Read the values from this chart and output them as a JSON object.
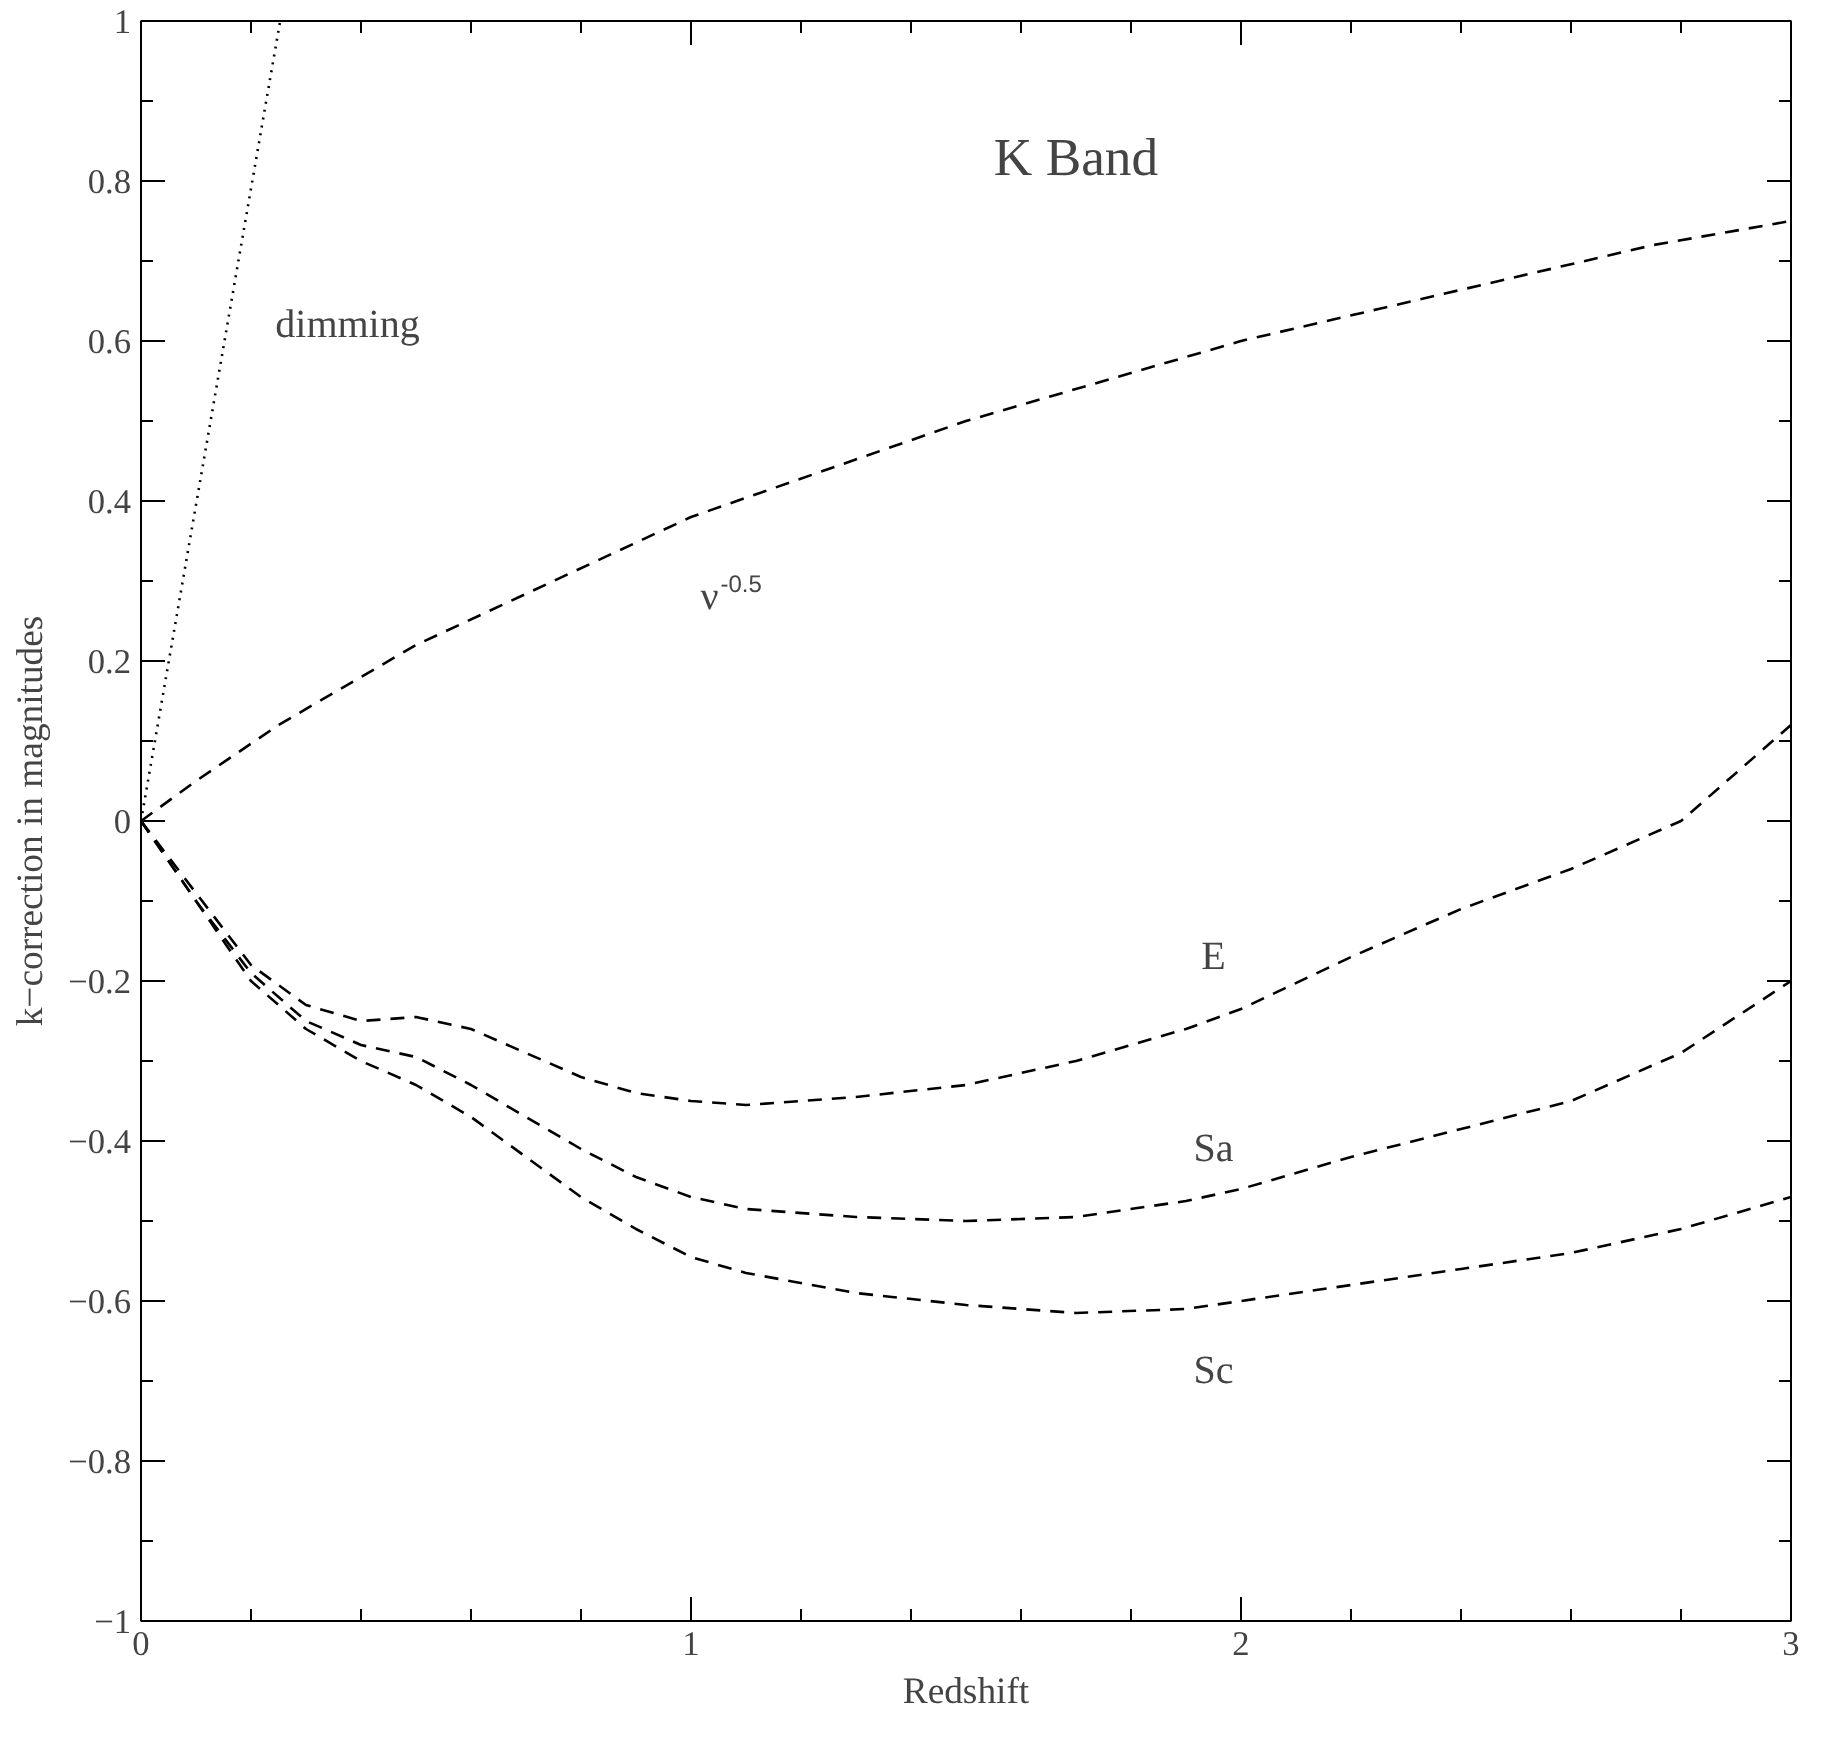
{
  "chart_data": {
    "type": "line",
    "title": "K Band",
    "xlabel": "Redshift",
    "ylabel": "k−correction in magnitudes",
    "xlim": [
      0,
      3
    ],
    "ylim": [
      -1,
      1
    ],
    "xticks": [
      0,
      1,
      2,
      3
    ],
    "yticks": [
      {
        "value": -1,
        "label": "−1"
      },
      {
        "value": -0.8,
        "label": "−0.8"
      },
      {
        "value": -0.6,
        "label": "−0.6"
      },
      {
        "value": -0.4,
        "label": "−0.4"
      },
      {
        "value": -0.2,
        "label": "−0.2"
      },
      0,
      0.2,
      0.4,
      0.6,
      0.8,
      1
    ],
    "grid": false,
    "legend": false,
    "marker": "none",
    "series": [
      {
        "name": "dimming",
        "color": "#000000",
        "line_style": "dotted",
        "x": [
          0,
          0.253
        ],
        "values": [
          0,
          1
        ]
      },
      {
        "name": "ν$^{-0.5}$",
        "color": "#000000",
        "line_style": "dashed",
        "x": [
          0,
          0.1,
          0.25,
          0.5,
          0.75,
          1,
          1.25,
          1.5,
          1.75,
          2,
          2.25,
          2.5,
          2.75,
          3
        ],
        "values": [
          0,
          0.05,
          0.12,
          0.22,
          0.3,
          0.38,
          0.44,
          0.5,
          0.55,
          0.6,
          0.64,
          0.68,
          0.72,
          0.75
        ]
      },
      {
        "color": "#000000",
        "line_style": "dashed",
        "x": [
          0,
          0.1,
          0.2,
          0.3,
          0.4,
          0.5,
          0.6,
          0.7,
          0.8,
          0.9,
          1.0,
          1.1,
          1.3,
          1.5,
          1.7,
          1.9,
          2.0,
          2.2,
          2.4,
          2.6,
          2.8,
          3.0
        ],
        "name": "E",
        "values": [
          0,
          -0.09,
          -0.18,
          -0.23,
          -0.25,
          -0.245,
          -0.26,
          -0.29,
          -0.32,
          -0.34,
          -0.35,
          -0.355,
          -0.345,
          -0.33,
          -0.3,
          -0.26,
          -0.235,
          -0.17,
          -0.11,
          -0.06,
          0.0,
          0.12
        ]
      },
      {
        "color": "#000000",
        "line_style": "dashed",
        "x": [
          0,
          0.1,
          0.2,
          0.3,
          0.4,
          0.5,
          0.6,
          0.7,
          0.8,
          0.9,
          1.0,
          1.1,
          1.3,
          1.5,
          1.7,
          1.9,
          2.0,
          2.2,
          2.4,
          2.6,
          2.8,
          3.0
        ],
        "name": "Sa",
        "values": [
          0,
          -0.1,
          -0.19,
          -0.25,
          -0.28,
          -0.295,
          -0.33,
          -0.37,
          -0.41,
          -0.445,
          -0.47,
          -0.485,
          -0.495,
          -0.5,
          -0.495,
          -0.475,
          -0.46,
          -0.42,
          -0.385,
          -0.35,
          -0.29,
          -0.2
        ]
      },
      {
        "color": "#000000",
        "line_style": "dashed",
        "x": [
          0,
          0.1,
          0.2,
          0.3,
          0.4,
          0.5,
          0.6,
          0.7,
          0.8,
          0.9,
          1.0,
          1.1,
          1.3,
          1.5,
          1.7,
          1.9,
          2.0,
          2.2,
          2.4,
          2.6,
          2.8,
          3.0
        ],
        "name": "Sc",
        "values": [
          0,
          -0.1,
          -0.2,
          -0.26,
          -0.3,
          -0.33,
          -0.37,
          -0.42,
          -0.47,
          -0.51,
          -0.545,
          -0.565,
          -0.59,
          -0.605,
          -0.615,
          -0.61,
          -0.6,
          -0.58,
          -0.56,
          -0.54,
          -0.51,
          -0.47
        ]
      }
    ]
  }
}
